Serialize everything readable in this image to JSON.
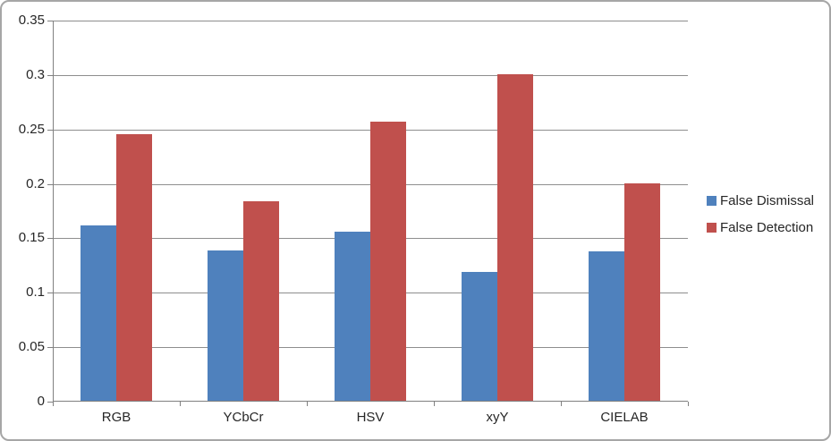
{
  "chart_data": {
    "type": "bar",
    "title": "",
    "xlabel": "",
    "ylabel": "",
    "categories": [
      "RGB",
      "YCbCr",
      "HSV",
      "xyY",
      "CIELAB"
    ],
    "series": [
      {
        "name": "False Dismissal",
        "color": "#4F81BD",
        "values": [
          0.161,
          0.138,
          0.155,
          0.118,
          0.137
        ]
      },
      {
        "name": "False Detection",
        "color": "#C0504D",
        "values": [
          0.245,
          0.183,
          0.256,
          0.3,
          0.2
        ]
      }
    ],
    "ylim": [
      0,
      0.35
    ],
    "ytick_step": 0.05,
    "ytick_labels": [
      "0",
      "0.05",
      "0.1",
      "0.15",
      "0.2",
      "0.25",
      "0.3",
      "0.35"
    ],
    "grid": true,
    "legend_position": "right"
  },
  "colors": {
    "grid": "#8e8e8e",
    "axis": "#808080",
    "text": "#262626",
    "frame_border": "#a6a6a6",
    "background": "#ffffff"
  }
}
